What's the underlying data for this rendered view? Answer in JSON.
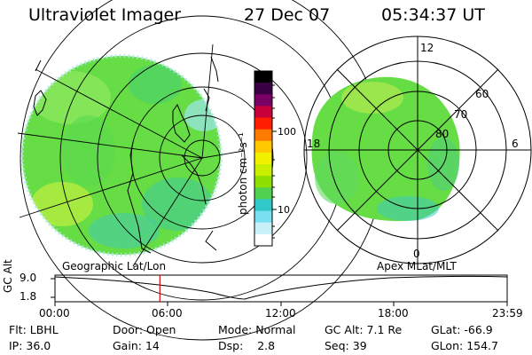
{
  "header": {
    "instrument": "Ultraviolet Imager",
    "date": "27 Dec 07",
    "time": "05:34:37 UT"
  },
  "colorbar": {
    "label": "photon cm⁻²s⁻¹",
    "ticks": [
      "100",
      "10"
    ],
    "colors": [
      "#000000",
      "#3a0044",
      "#7a0066",
      "#c8003a",
      "#ff1e00",
      "#ff7a00",
      "#ffc800",
      "#f0f000",
      "#c8ee00",
      "#8ee000",
      "#50d250",
      "#30c8c8",
      "#78e0f0",
      "#c8f0f8",
      "#ffffff"
    ]
  },
  "left_panel": {
    "caption": "Geographic Lat/Lon",
    "fill": "#66dd44"
  },
  "right_panel": {
    "caption": "Apex MLat/MLT",
    "mlt_labels": [
      "12",
      "18",
      "6",
      "0"
    ],
    "mlat_labels": [
      "60",
      "70",
      "80"
    ]
  },
  "timeline": {
    "axis_label": "GC Alt",
    "y_ticks": [
      "9.0",
      "1.8"
    ],
    "x_ticks": [
      "00:00",
      "06:00",
      "12:00",
      "18:00",
      "23:59"
    ],
    "current_time_fraction": 0.232,
    "marker_color": "#e00000"
  },
  "status": {
    "flt_label": "Flt:",
    "flt_value": "LBHL",
    "ip_label": "IP:",
    "ip_value": "36.0",
    "door_label": "Door:",
    "door_value": "Open",
    "gain_label": "Gain:",
    "gain_value": "14",
    "mode_label": "Mode:",
    "mode_value": "Normal",
    "dsp_label": "Dsp:",
    "dsp_value": "2.8",
    "gcalt_label": "GC Alt:",
    "gcalt_value": "7.1 Re",
    "seq_label": "Seq:",
    "seq_value": "39",
    "glat_label": "GLat:",
    "glat_value": "-66.9",
    "glon_label": "GLon:",
    "glon_value": "154.7"
  }
}
